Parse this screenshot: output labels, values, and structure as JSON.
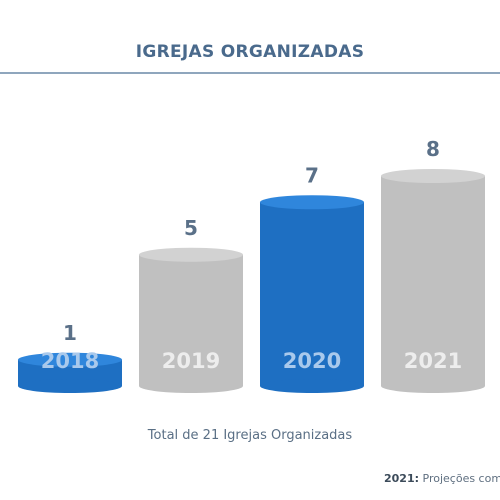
{
  "chart_data": {
    "type": "bar",
    "title": "IGREJAS ORGANIZADAS",
    "categories": [
      "2018",
      "2019",
      "2020",
      "2021"
    ],
    "values": [
      1,
      5,
      7,
      8
    ],
    "bar_colors": [
      "#1e6fc2",
      "#c0c0c0",
      "#1e6fc2",
      "#c0c0c0"
    ],
    "caption": "Total de 21 Igrejas Organizadas"
  },
  "footnote": {
    "bold": "2021:",
    "text": " Projeções com"
  },
  "colors": {
    "blue": "#1e6fc2",
    "blue_top": "#2f86dc",
    "gray": "#c0c0c0",
    "gray_top": "#d2d2d2",
    "label": "#5a7088",
    "title": "#4a6a8c"
  }
}
